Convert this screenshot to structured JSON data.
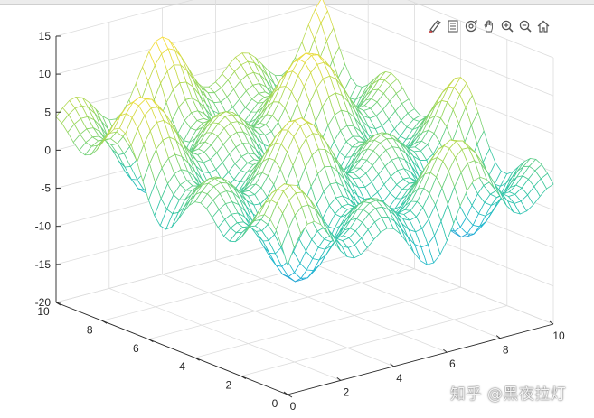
{
  "window": {
    "toolbar_icons": [
      "brush-icon",
      "data-cursor-icon",
      "rotate-3d-icon",
      "pan-hand-icon",
      "zoom-in-icon",
      "zoom-out-icon",
      "home-icon"
    ]
  },
  "watermark": "知乎 @黑夜拉灯",
  "chart_data": {
    "type": "mesh",
    "title": "",
    "xlabel": "",
    "ylabel": "",
    "zlabel": "",
    "xlim": [
      0,
      10
    ],
    "ylim": [
      0,
      10
    ],
    "zlim": [
      -20,
      15
    ],
    "x_ticks": [
      "0",
      "2",
      "4",
      "6",
      "8",
      "10"
    ],
    "y_ticks": [
      "0",
      "2",
      "4",
      "6",
      "8",
      "10"
    ],
    "z_ticks": [
      "-20",
      "-15",
      "-10",
      "-5",
      "0",
      "5",
      "10",
      "15"
    ],
    "grid": true,
    "colormap": "parula",
    "colormap_colors": [
      "#3e7bd9",
      "#1fb6d3",
      "#35c7a4",
      "#9fd85a",
      "#f6dd3c"
    ],
    "view": "3-D default (azimuth -37.5, elevation 30)",
    "x_step": 0.25,
    "y_step": 0.25,
    "z_function": "3*(sin(2x)+sin(2y)) + 2.5*sin(x+y) + 0.6*y - 3"
  }
}
